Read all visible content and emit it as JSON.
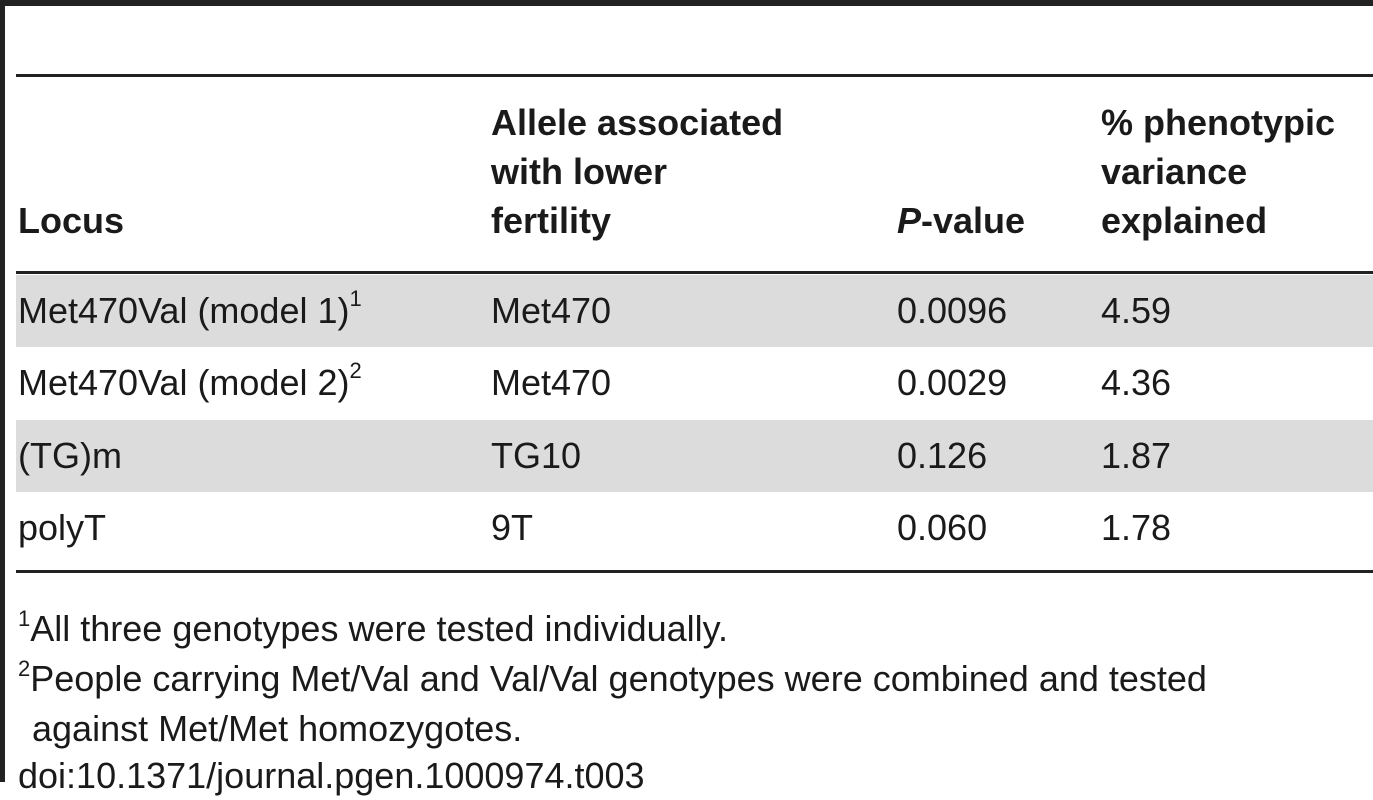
{
  "table": {
    "headers": {
      "locus": "Locus",
      "allele": "Allele associated\nwith lower\nfertility",
      "pvalue_italic": "P",
      "pvalue_rest": "-value",
      "variance": "% phenotypic\nvariance\nexplained"
    },
    "rows": [
      {
        "locus": "Met470Val (model 1)",
        "sup": "1",
        "allele": "Met470",
        "pvalue": "0.0096",
        "variance": "4.59"
      },
      {
        "locus": "Met470Val (model 2)",
        "sup": "2",
        "allele": "Met470",
        "pvalue": "0.0029",
        "variance": "4.36"
      },
      {
        "locus": "(TG)m",
        "sup": "",
        "allele": "TG10",
        "pvalue": "0.126",
        "variance": "1.87"
      },
      {
        "locus": "polyT",
        "sup": "",
        "allele": "9T",
        "pvalue": "0.060",
        "variance": "1.78"
      }
    ]
  },
  "footnotes": {
    "fn1_mark": "1",
    "fn1_text": "All three genotypes were tested individually.",
    "fn2_mark": "2",
    "fn2_line1": "People carrying Met/Val and Val/Val genotypes were combined and tested",
    "fn2_line2": "against Met/Met homozygotes."
  },
  "doi": "doi:10.1371/journal.pgen.1000974.t003"
}
